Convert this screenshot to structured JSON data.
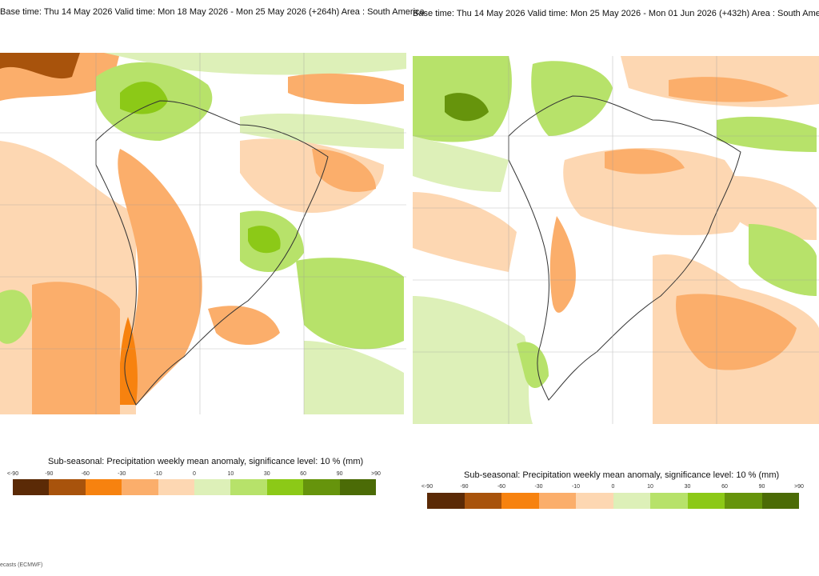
{
  "panels": [
    {
      "title": "Base time: Thu 14 May 2026 Valid time: Mon 18 May 2026 - Mon 25 May 2026 (+264h) Area : South America"
    },
    {
      "title": "Base time: Thu 14 May 2026 Valid time: Mon 25 May 2026 - Mon 01 Jun 2026 (+432h) Area : South America"
    }
  ],
  "legend": {
    "title": "Sub-seasonal: Precipitation weekly mean anomaly, significance level: 10 % (mm)",
    "ticks": [
      "<-90",
      "-90",
      "-60",
      "-30",
      "-10",
      "0",
      "10",
      "30",
      "60",
      "90",
      ">90"
    ],
    "colors": [
      "#5b2a06",
      "#a8530c",
      "#f7820f",
      "#fbae6b",
      "#fdd7b2",
      "#ddf0b8",
      "#b7e26a",
      "#8cc917",
      "#66940c",
      "#4b6b06"
    ]
  },
  "footer": "ecasts (ECMWF)"
}
